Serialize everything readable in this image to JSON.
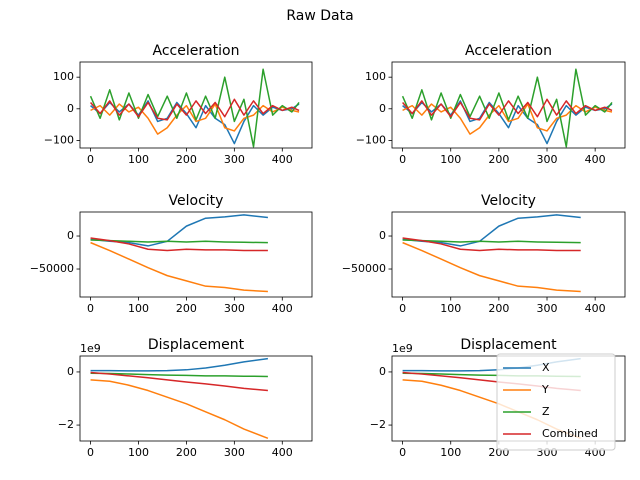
{
  "title": "Raw Data",
  "chart_data": [
    {
      "type": "line",
      "title": "Acceleration",
      "x": [
        0,
        20,
        40,
        60,
        80,
        100,
        120,
        140,
        160,
        180,
        200,
        220,
        240,
        260,
        280,
        300,
        320,
        340,
        360,
        380,
        400,
        420,
        435
      ],
      "xlim": [
        -22,
        462
      ],
      "xticks": [
        0,
        100,
        200,
        300,
        400
      ],
      "ylim": [
        -124,
        148
      ],
      "yticks": [
        {
          "value": -100,
          "label": "−100"
        },
        0,
        100
      ],
      "series": [
        {
          "name": "X",
          "color": "#1f77b4",
          "values": [
            10,
            -15,
            20,
            -10,
            15,
            -20,
            25,
            -40,
            -30,
            20,
            -15,
            -60,
            10,
            -30,
            -50,
            -110,
            -40,
            10,
            -20,
            5,
            -5,
            0,
            15
          ]
        },
        {
          "name": "Y",
          "color": "#ff7f0e",
          "values": [
            -5,
            10,
            -20,
            15,
            -10,
            5,
            -30,
            -80,
            -60,
            -20,
            10,
            -40,
            -30,
            15,
            -60,
            -70,
            -30,
            -20,
            10,
            -10,
            5,
            -5,
            -10
          ]
        },
        {
          "name": "Z",
          "color": "#2ca02c",
          "values": [
            40,
            -30,
            60,
            -35,
            50,
            -30,
            45,
            -25,
            40,
            -30,
            50,
            -35,
            40,
            -30,
            100,
            -40,
            30,
            -120,
            125,
            -20,
            10,
            -10,
            20
          ]
        },
        {
          "name": "Combined",
          "color": "#d62728",
          "values": [
            20,
            -15,
            25,
            -20,
            15,
            -25,
            20,
            -30,
            -35,
            15,
            -20,
            25,
            -15,
            20,
            -25,
            30,
            -20,
            25,
            -15,
            10,
            -5,
            5,
            -5
          ]
        }
      ]
    },
    {
      "type": "line",
      "title": "Acceleration",
      "x": [
        0,
        20,
        40,
        60,
        80,
        100,
        120,
        140,
        160,
        180,
        200,
        220,
        240,
        260,
        280,
        300,
        320,
        340,
        360,
        380,
        400,
        420,
        435
      ],
      "xlim": [
        -22,
        462
      ],
      "xticks": [
        0,
        100,
        200,
        300,
        400
      ],
      "ylim": [
        -124,
        148
      ],
      "yticks": [
        {
          "value": -100,
          "label": "−100"
        },
        0,
        100
      ],
      "series": [
        {
          "name": "X",
          "color": "#1f77b4",
          "values": [
            10,
            -15,
            20,
            -10,
            15,
            -20,
            25,
            -40,
            -30,
            20,
            -15,
            -60,
            10,
            -30,
            -50,
            -110,
            -40,
            10,
            -20,
            5,
            -5,
            0,
            15
          ]
        },
        {
          "name": "Y",
          "color": "#ff7f0e",
          "values": [
            -5,
            10,
            -20,
            15,
            -10,
            5,
            -30,
            -80,
            -60,
            -20,
            10,
            -40,
            -30,
            15,
            -60,
            -70,
            -30,
            -20,
            10,
            -10,
            5,
            -5,
            -10
          ]
        },
        {
          "name": "Z",
          "color": "#2ca02c",
          "values": [
            40,
            -30,
            60,
            -35,
            50,
            -30,
            45,
            -25,
            40,
            -30,
            50,
            -35,
            40,
            -30,
            100,
            -40,
            30,
            -120,
            125,
            -20,
            10,
            -10,
            20
          ]
        },
        {
          "name": "Combined",
          "color": "#d62728",
          "values": [
            20,
            -15,
            25,
            -20,
            15,
            -25,
            20,
            -30,
            -35,
            15,
            -20,
            25,
            -15,
            20,
            -25,
            30,
            -20,
            25,
            -15,
            10,
            -5,
            5,
            -5
          ]
        }
      ]
    },
    {
      "type": "line",
      "title": "Velocity",
      "x": [
        0,
        40,
        80,
        120,
        160,
        200,
        240,
        280,
        320,
        370
      ],
      "xlim": [
        -22,
        462
      ],
      "xticks": [
        0,
        100,
        200,
        300,
        400
      ],
      "ylim": [
        -92400,
        36400
      ],
      "yticks": [
        {
          "value": -50000,
          "label": "−50000"
        },
        0
      ],
      "series": [
        {
          "name": "X",
          "color": "#1f77b4",
          "values": [
            -5000,
            -8000,
            -10000,
            -15000,
            -8000,
            15000,
            27000,
            29000,
            32000,
            28000
          ]
        },
        {
          "name": "Y",
          "color": "#ff7f0e",
          "values": [
            -10000,
            -22000,
            -35000,
            -48000,
            -60000,
            -68000,
            -76000,
            -78000,
            -82000,
            -84000
          ]
        },
        {
          "name": "Z",
          "color": "#2ca02c",
          "values": [
            -6000,
            -7000,
            -8000,
            -9000,
            -8000,
            -9000,
            -8000,
            -9000,
            -9500,
            -10000
          ]
        },
        {
          "name": "Combined",
          "color": "#d62728",
          "values": [
            -3000,
            -7000,
            -12000,
            -20000,
            -22000,
            -20000,
            -21000,
            -21000,
            -22000,
            -22000
          ]
        }
      ]
    },
    {
      "type": "line",
      "title": "Velocity",
      "x": [
        0,
        40,
        80,
        120,
        160,
        200,
        240,
        280,
        320,
        370
      ],
      "xlim": [
        -22,
        462
      ],
      "xticks": [
        0,
        100,
        200,
        300,
        400
      ],
      "ylim": [
        -92400,
        36400
      ],
      "yticks": [
        {
          "value": -50000,
          "label": "−50000"
        },
        0
      ],
      "series": [
        {
          "name": "X",
          "color": "#1f77b4",
          "values": [
            -5000,
            -8000,
            -10000,
            -15000,
            -8000,
            15000,
            27000,
            29000,
            32000,
            28000
          ]
        },
        {
          "name": "Y",
          "color": "#ff7f0e",
          "values": [
            -10000,
            -22000,
            -35000,
            -48000,
            -60000,
            -68000,
            -76000,
            -78000,
            -82000,
            -84000
          ]
        },
        {
          "name": "Z",
          "color": "#2ca02c",
          "values": [
            -6000,
            -7000,
            -8000,
            -9000,
            -8000,
            -9000,
            -8000,
            -9000,
            -9500,
            -10000
          ]
        },
        {
          "name": "Combined",
          "color": "#d62728",
          "values": [
            -3000,
            -7000,
            -12000,
            -20000,
            -22000,
            -20000,
            -21000,
            -21000,
            -22000,
            -22000
          ]
        }
      ]
    },
    {
      "type": "line",
      "title": "Displacement",
      "y_offset_label": "1e9",
      "x": [
        0,
        40,
        80,
        120,
        160,
        200,
        240,
        280,
        320,
        370
      ],
      "xlim": [
        -22,
        462
      ],
      "xticks": [
        0,
        100,
        200,
        300,
        400
      ],
      "ylim": [
        -2.6,
        0.6
      ],
      "yticks": [
        {
          "value": -2,
          "label": "−2"
        },
        0
      ],
      "series": [
        {
          "name": "X",
          "color": "#1f77b4",
          "values": [
            0.05,
            0.05,
            0.04,
            0.04,
            0.05,
            0.08,
            0.15,
            0.25,
            0.38,
            0.5
          ]
        },
        {
          "name": "Y",
          "color": "#ff7f0e",
          "values": [
            -0.3,
            -0.35,
            -0.5,
            -0.7,
            -0.95,
            -1.2,
            -1.5,
            -1.8,
            -2.15,
            -2.5
          ]
        },
        {
          "name": "Z",
          "color": "#2ca02c",
          "values": [
            -0.05,
            -0.06,
            -0.08,
            -0.1,
            -0.12,
            -0.13,
            -0.15,
            -0.15,
            -0.16,
            -0.17
          ]
        },
        {
          "name": "Combined",
          "color": "#d62728",
          "values": [
            -0.02,
            -0.08,
            -0.15,
            -0.22,
            -0.3,
            -0.38,
            -0.45,
            -0.53,
            -0.62,
            -0.7
          ]
        }
      ]
    },
    {
      "type": "line",
      "title": "Displacement",
      "y_offset_label": "1e9",
      "legend": "lower right",
      "x": [
        0,
        40,
        80,
        120,
        160,
        200,
        240,
        280,
        320,
        370
      ],
      "xlim": [
        -22,
        462
      ],
      "xticks": [
        0,
        100,
        200,
        300,
        400
      ],
      "ylim": [
        -2.6,
        0.6
      ],
      "yticks": [
        {
          "value": -2,
          "label": "−2"
        },
        0
      ],
      "series": [
        {
          "name": "X",
          "color": "#1f77b4",
          "values": [
            0.05,
            0.05,
            0.04,
            0.04,
            0.05,
            0.08,
            0.15,
            0.25,
            0.38,
            0.5
          ]
        },
        {
          "name": "Y",
          "color": "#ff7f0e",
          "values": [
            -0.3,
            -0.35,
            -0.5,
            -0.7,
            -0.95,
            -1.2,
            -1.5,
            -1.8,
            -2.15,
            -2.5
          ]
        },
        {
          "name": "Z",
          "color": "#2ca02c",
          "values": [
            -0.05,
            -0.06,
            -0.08,
            -0.1,
            -0.12,
            -0.13,
            -0.15,
            -0.15,
            -0.16,
            -0.17
          ]
        },
        {
          "name": "Combined",
          "color": "#d62728",
          "values": [
            -0.02,
            -0.08,
            -0.15,
            -0.22,
            -0.3,
            -0.38,
            -0.45,
            -0.53,
            -0.62,
            -0.7
          ]
        }
      ]
    }
  ]
}
